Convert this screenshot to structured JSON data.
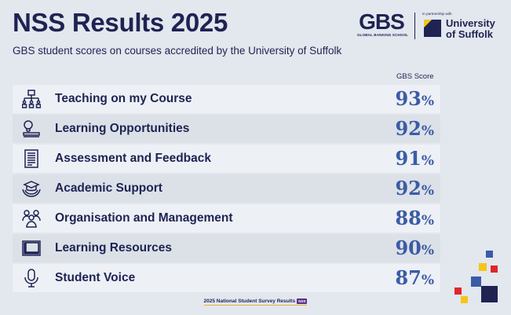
{
  "header": {
    "title": "NSS Results 2025",
    "subtitle": "GBS student scores on courses accredited by the University of Suffolk"
  },
  "logos": {
    "gbs_mark": "GBS",
    "gbs_sub": "GLOBAL BANKING SCHOOL",
    "partner_text": "In partnership with",
    "suffolk_line1": "University",
    "suffolk_line2": "of Suffolk"
  },
  "table": {
    "score_header": "GBS Score",
    "rows": [
      {
        "label": "Teaching on my Course",
        "score": "93",
        "unit": "%",
        "icon": "teaching-icon"
      },
      {
        "label": "Learning Opportunities",
        "score": "92",
        "unit": "%",
        "icon": "lightbulb-icon"
      },
      {
        "label": "Assessment and Feedback",
        "score": "91",
        "unit": "%",
        "icon": "document-icon"
      },
      {
        "label": "Academic Support",
        "score": "92",
        "unit": "%",
        "icon": "graduation-hands-icon"
      },
      {
        "label": "Organisation and Management",
        "score": "88",
        "unit": "%",
        "icon": "people-group-icon"
      },
      {
        "label": "Learning Resources",
        "score": "90",
        "unit": "%",
        "icon": "book-icon"
      },
      {
        "label": "Student Voice",
        "score": "87",
        "unit": "%",
        "icon": "microphone-icon"
      }
    ]
  },
  "footer": {
    "text": "2025 National Student Survey Results",
    "badge": "NSS"
  },
  "colors": {
    "navy": "#1e2352",
    "score_blue": "#3b5ba5",
    "background": "#e3e7ee",
    "accent_red": "#e0262c",
    "accent_yellow": "#f5c518",
    "accent_blue": "#3b5ba5"
  }
}
